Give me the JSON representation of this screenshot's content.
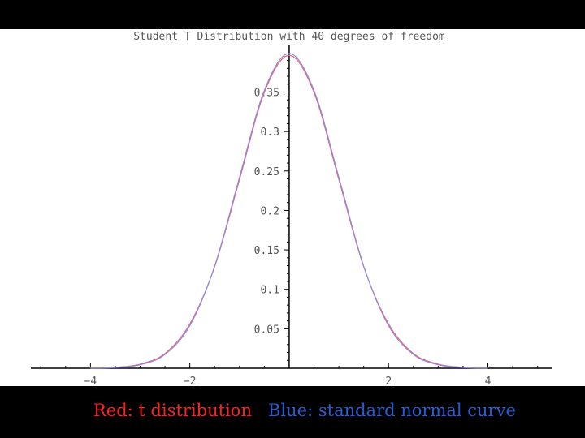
{
  "chart_data": {
    "type": "line",
    "title": "Student T Distribution with 40 degrees of freedom",
    "xlabel": "",
    "ylabel": "",
    "xlim": [
      -5.2,
      5.3
    ],
    "ylim": [
      0,
      0.405
    ],
    "grid": false,
    "x_ticks": [
      -4,
      -2,
      2,
      4
    ],
    "x_tick_labels": [
      "−4",
      "−2",
      "2",
      "4"
    ],
    "y_ticks": [
      0.05,
      0.1,
      0.15,
      0.2,
      0.25,
      0.3,
      0.35
    ],
    "y_tick_labels": [
      "0.05",
      "0.1",
      "0.15",
      "0.2",
      "0.25",
      "0.3",
      "0.35"
    ],
    "series": [
      {
        "name": "t distribution",
        "color": "#ee6677",
        "x": [
          -4,
          -3.5,
          -3,
          -2.5,
          -2,
          -1.5,
          -1,
          -0.5,
          0,
          0.5,
          1,
          1.5,
          2,
          2.5,
          3,
          3.5,
          4
        ],
        "values": [
          0.0003,
          0.0011,
          0.0052,
          0.0187,
          0.0561,
          0.1287,
          0.239,
          0.3495,
          0.3965,
          0.3495,
          0.239,
          0.1287,
          0.0561,
          0.0187,
          0.0052,
          0.0011,
          0.0003
        ]
      },
      {
        "name": "standard normal curve",
        "color": "#8a8ae0",
        "x": [
          -4,
          -3.5,
          -3,
          -2.5,
          -2,
          -1.5,
          -1,
          -0.5,
          0,
          0.5,
          1,
          1.5,
          2,
          2.5,
          3,
          3.5,
          4
        ],
        "values": [
          0.0001,
          0.0009,
          0.0044,
          0.0175,
          0.054,
          0.1295,
          0.242,
          0.3521,
          0.3989,
          0.3521,
          0.242,
          0.1295,
          0.054,
          0.0175,
          0.0044,
          0.0009,
          0.0001
        ]
      }
    ]
  },
  "caption": {
    "red_label": "Red: t distribution",
    "red_color": "#ff2020",
    "blue_label": "Blue: standard normal curve",
    "blue_color": "#2a5cd6"
  }
}
